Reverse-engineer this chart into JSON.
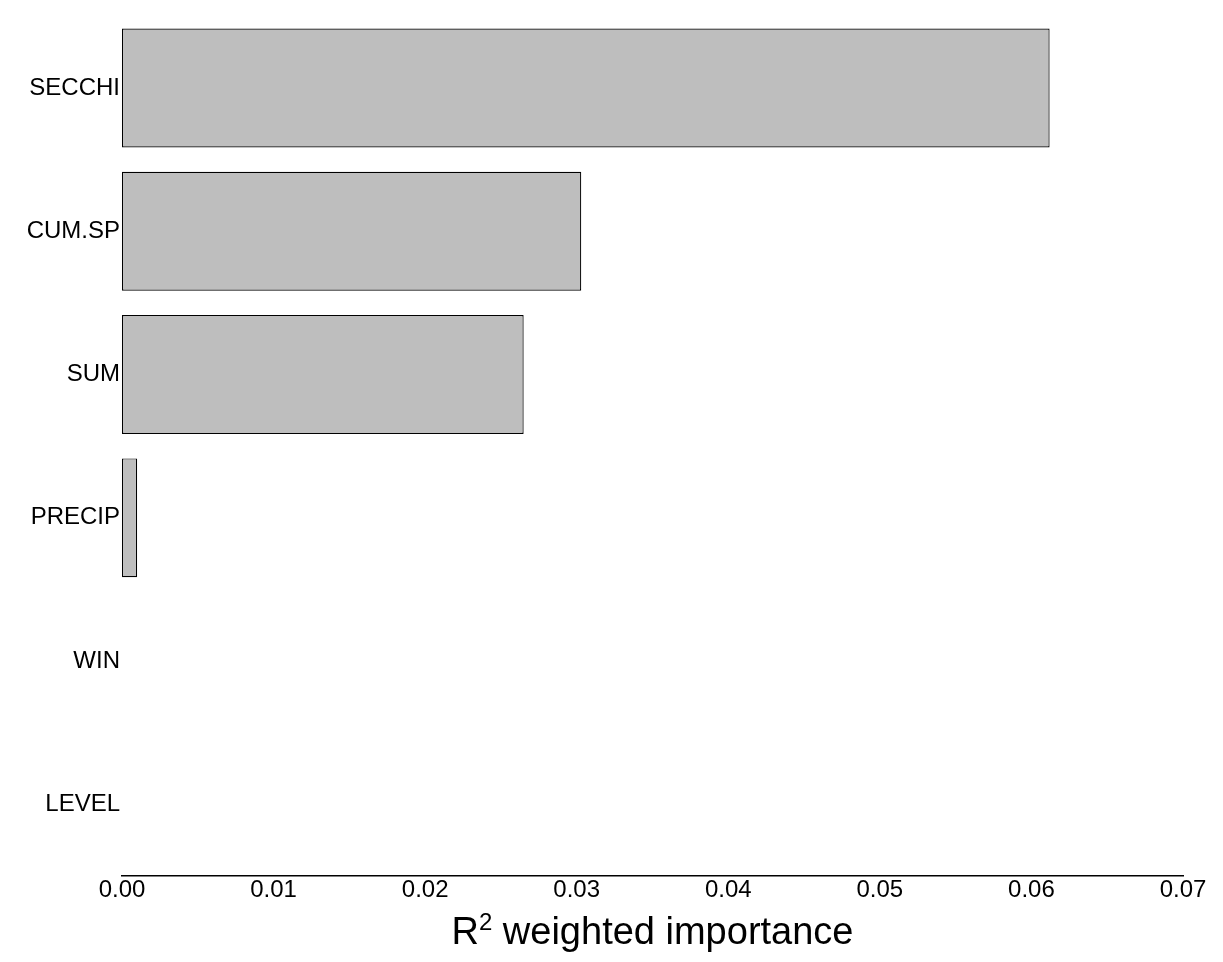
{
  "chart_data": {
    "type": "bar",
    "orientation": "horizontal",
    "xlabel": "R$^{2}$ weighted importance",
    "categories": [
      "SECCHI",
      "CUM.SP",
      "SUM",
      "PRECIP",
      "WIN",
      "LEVEL"
    ],
    "values": [
      0.0612,
      0.0303,
      0.0265,
      0.001,
      0,
      0
    ],
    "color": "#bebebe",
    "xlim": [
      0,
      0.07
    ],
    "xticks": [
      {
        "value": 0,
        "label": "0.00"
      },
      {
        "value": 0.01,
        "label": "0.01"
      },
      {
        "value": 0.02,
        "label": "0.02"
      },
      {
        "value": 0.03,
        "label": "0.03"
      },
      {
        "value": 0.04,
        "label": "0.04"
      },
      {
        "value": 0.05,
        "label": "0.05"
      },
      {
        "value": 0.06,
        "label": "0.06"
      },
      {
        "value": 0.07,
        "label": "0.07"
      }
    ],
    "grid": false,
    "legend": false
  }
}
